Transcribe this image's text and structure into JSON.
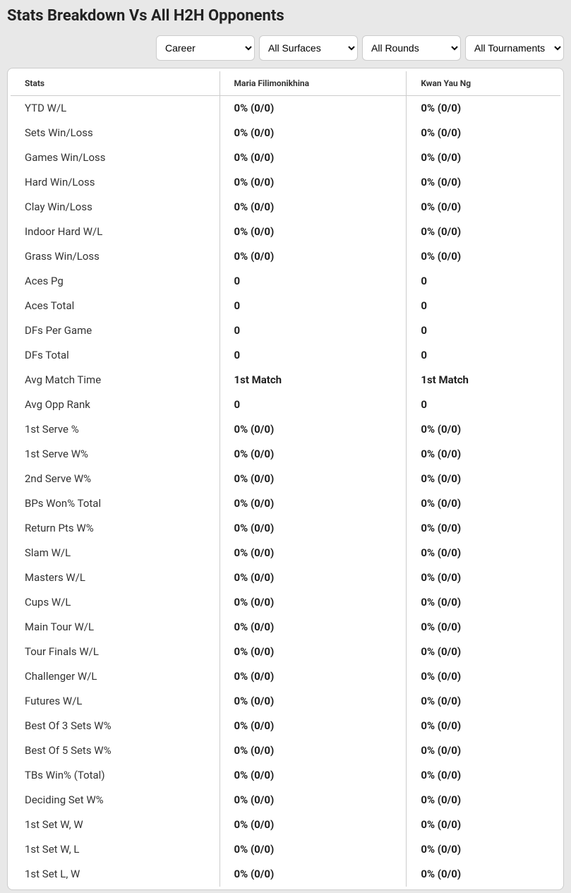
{
  "title": "Stats Breakdown Vs All H2H Opponents",
  "filters": {
    "career": {
      "selected": "Career",
      "options": [
        "Career"
      ]
    },
    "surfaces": {
      "selected": "All Surfaces",
      "options": [
        "All Surfaces"
      ]
    },
    "rounds": {
      "selected": "All Rounds",
      "options": [
        "All Rounds"
      ]
    },
    "tournaments": {
      "selected": "All Tournaments",
      "options": [
        "All Tournaments"
      ]
    }
  },
  "table": {
    "headers": {
      "stats": "Stats",
      "player1": "Maria Filimonikhina",
      "player2": "Kwan Yau Ng"
    },
    "rows": [
      {
        "label": "YTD W/L",
        "p1": "0% (0/0)",
        "p2": "0% (0/0)"
      },
      {
        "label": "Sets Win/Loss",
        "p1": "0% (0/0)",
        "p2": "0% (0/0)"
      },
      {
        "label": "Games Win/Loss",
        "p1": "0% (0/0)",
        "p2": "0% (0/0)"
      },
      {
        "label": "Hard Win/Loss",
        "p1": "0% (0/0)",
        "p2": "0% (0/0)"
      },
      {
        "label": "Clay Win/Loss",
        "p1": "0% (0/0)",
        "p2": "0% (0/0)"
      },
      {
        "label": "Indoor Hard W/L",
        "p1": "0% (0/0)",
        "p2": "0% (0/0)"
      },
      {
        "label": "Grass Win/Loss",
        "p1": "0% (0/0)",
        "p2": "0% (0/0)"
      },
      {
        "label": "Aces Pg",
        "p1": "0",
        "p2": "0"
      },
      {
        "label": "Aces Total",
        "p1": "0",
        "p2": "0"
      },
      {
        "label": "DFs Per Game",
        "p1": "0",
        "p2": "0"
      },
      {
        "label": "DFs Total",
        "p1": "0",
        "p2": "0"
      },
      {
        "label": "Avg Match Time",
        "p1": "1st Match",
        "p2": "1st Match"
      },
      {
        "label": "Avg Opp Rank",
        "p1": "0",
        "p2": "0"
      },
      {
        "label": "1st Serve %",
        "p1": "0% (0/0)",
        "p2": "0% (0/0)"
      },
      {
        "label": "1st Serve W%",
        "p1": "0% (0/0)",
        "p2": "0% (0/0)"
      },
      {
        "label": "2nd Serve W%",
        "p1": "0% (0/0)",
        "p2": "0% (0/0)"
      },
      {
        "label": "BPs Won% Total",
        "p1": "0% (0/0)",
        "p2": "0% (0/0)"
      },
      {
        "label": "Return Pts W%",
        "p1": "0% (0/0)",
        "p2": "0% (0/0)"
      },
      {
        "label": "Slam W/L",
        "p1": "0% (0/0)",
        "p2": "0% (0/0)"
      },
      {
        "label": "Masters W/L",
        "p1": "0% (0/0)",
        "p2": "0% (0/0)"
      },
      {
        "label": "Cups W/L",
        "p1": "0% (0/0)",
        "p2": "0% (0/0)"
      },
      {
        "label": "Main Tour W/L",
        "p1": "0% (0/0)",
        "p2": "0% (0/0)"
      },
      {
        "label": "Tour Finals W/L",
        "p1": "0% (0/0)",
        "p2": "0% (0/0)"
      },
      {
        "label": "Challenger W/L",
        "p1": "0% (0/0)",
        "p2": "0% (0/0)"
      },
      {
        "label": "Futures W/L",
        "p1": "0% (0/0)",
        "p2": "0% (0/0)"
      },
      {
        "label": "Best Of 3 Sets W%",
        "p1": "0% (0/0)",
        "p2": "0% (0/0)"
      },
      {
        "label": "Best Of 5 Sets W%",
        "p1": "0% (0/0)",
        "p2": "0% (0/0)"
      },
      {
        "label": "TBs Win% (Total)",
        "p1": "0% (0/0)",
        "p2": "0% (0/0)"
      },
      {
        "label": "Deciding Set W%",
        "p1": "0% (0/0)",
        "p2": "0% (0/0)"
      },
      {
        "label": "1st Set W, W",
        "p1": "0% (0/0)",
        "p2": "0% (0/0)"
      },
      {
        "label": "1st Set W, L",
        "p1": "0% (0/0)",
        "p2": "0% (0/0)"
      },
      {
        "label": "1st Set L, W",
        "p1": "0% (0/0)",
        "p2": "0% (0/0)"
      }
    ]
  },
  "style": {
    "background_color": "#e8e8e8",
    "card_background": "#ffffff",
    "border_color": "#cccccc",
    "text_color": "#222222",
    "label_color": "#333333",
    "title_fontsize": 22,
    "header_fontsize": 12,
    "cell_fontsize": 15
  }
}
